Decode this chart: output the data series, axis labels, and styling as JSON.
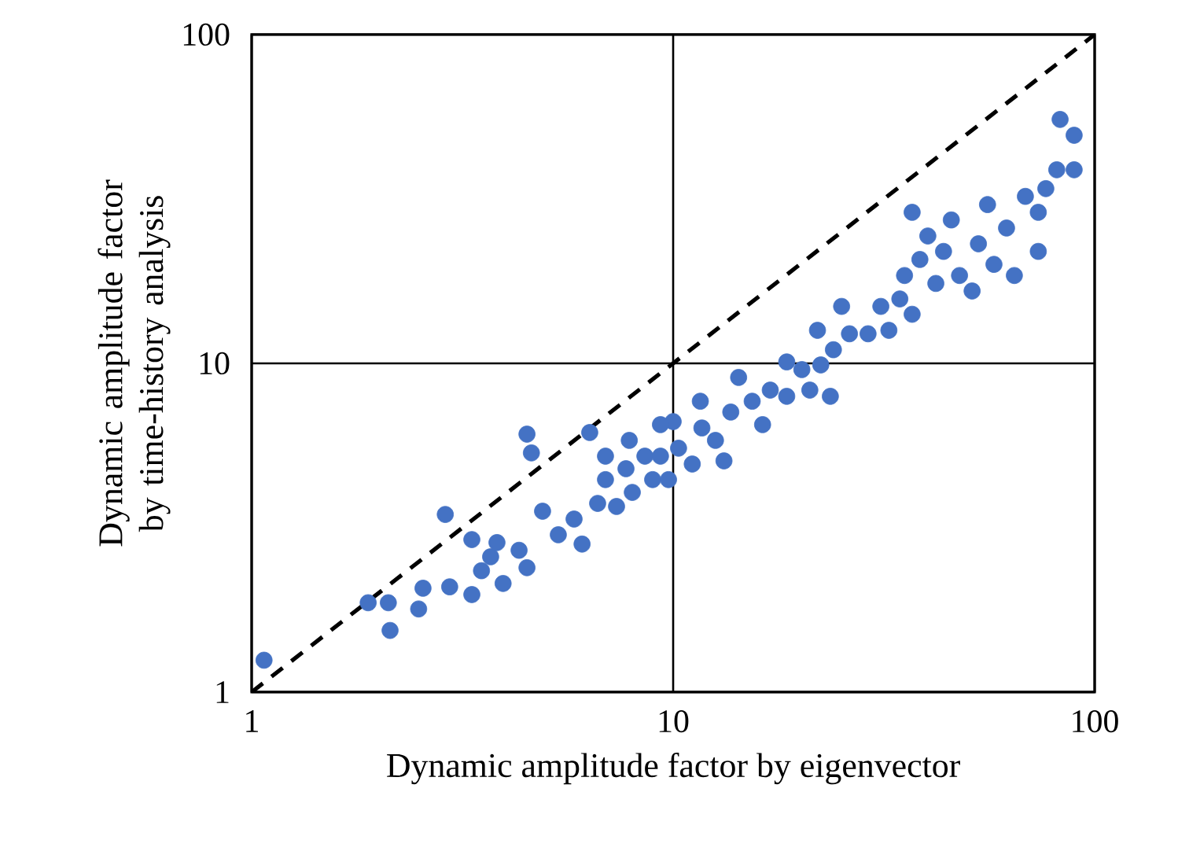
{
  "chart_data": {
    "type": "scatter",
    "xlabel": "Dynamic amplitude factor by eigenvector",
    "ylabel": "Dynamic amplitude factor by time-history analysis",
    "log": "xy",
    "xlim": [
      1,
      100
    ],
    "ylim": [
      1,
      100
    ],
    "xticks": [
      1,
      10,
      100
    ],
    "yticks": [
      1,
      10,
      100
    ],
    "grid": true,
    "series": [
      {
        "type": "scatter",
        "color": "#4472c4",
        "marker": "circle",
        "x": [
          1.07,
          1.89,
          2.11,
          2.13,
          2.49,
          2.55,
          2.88,
          2.95,
          3.33,
          3.33,
          3.51,
          3.69,
          3.82,
          3.95,
          4.31,
          4.5,
          4.5,
          4.61,
          4.9,
          5.34,
          5.82,
          6.08,
          6.34,
          6.62,
          6.91,
          7.34,
          7.73,
          8.0,
          8.57,
          8.94,
          9.33,
          9.75,
          10,
          10.3,
          11.1,
          11.7,
          12.6,
          13.2,
          13.7,
          15.4,
          16.3,
          17.0,
          18.6,
          20.2,
          21.1,
          22.4,
          23.6,
          22.0,
          24.0,
          26.2,
          25.1,
          29.0,
          31.1,
          32.5,
          34.5,
          35.4,
          36.9,
          38.5,
          40.2,
          42.0,
          43.8,
          45.7,
          47.8,
          51.2,
          53.0,
          55.7,
          57.7,
          61.8,
          64.5,
          68.5,
          73.5,
          76.6,
          81.3,
          82.8,
          89.4,
          89.4,
          73.5,
          36.9,
          18.6,
          14.3,
          11.6,
          9.33,
          7.87,
          6.91
        ],
        "values": [
          1.25,
          1.87,
          1.87,
          1.54,
          1.79,
          2.07,
          3.47,
          2.09,
          2.91,
          1.98,
          2.34,
          2.58,
          2.85,
          2.14,
          2.7,
          2.39,
          6.09,
          5.34,
          3.55,
          3.01,
          3.36,
          2.82,
          6.16,
          3.75,
          4.43,
          3.67,
          4.78,
          4.05,
          5.22,
          4.43,
          5.22,
          4.43,
          6.65,
          5.52,
          4.94,
          6.36,
          5.83,
          5.05,
          7.11,
          7.67,
          6.51,
          8.29,
          7.94,
          9.57,
          8.29,
          9.89,
          7.94,
          12.6,
          11.0,
          12.3,
          14.9,
          12.3,
          14.9,
          12.6,
          15.7,
          18.5,
          14.1,
          20.7,
          24.4,
          17.5,
          21.9,
          27.3,
          18.5,
          16.6,
          23.1,
          30.4,
          20.0,
          25.8,
          18.5,
          32.2,
          28.8,
          34.0,
          38.8,
          55.2,
          49.4,
          38.8,
          21.9,
          28.8,
          10.1,
          9.06,
          7.67,
          6.51,
          5.83,
          5.22
        ]
      },
      {
        "type": "line",
        "color": "#000000",
        "line_style": "dashed",
        "marker": "none",
        "x": [
          1,
          100
        ],
        "values": [
          1,
          100
        ]
      }
    ]
  }
}
